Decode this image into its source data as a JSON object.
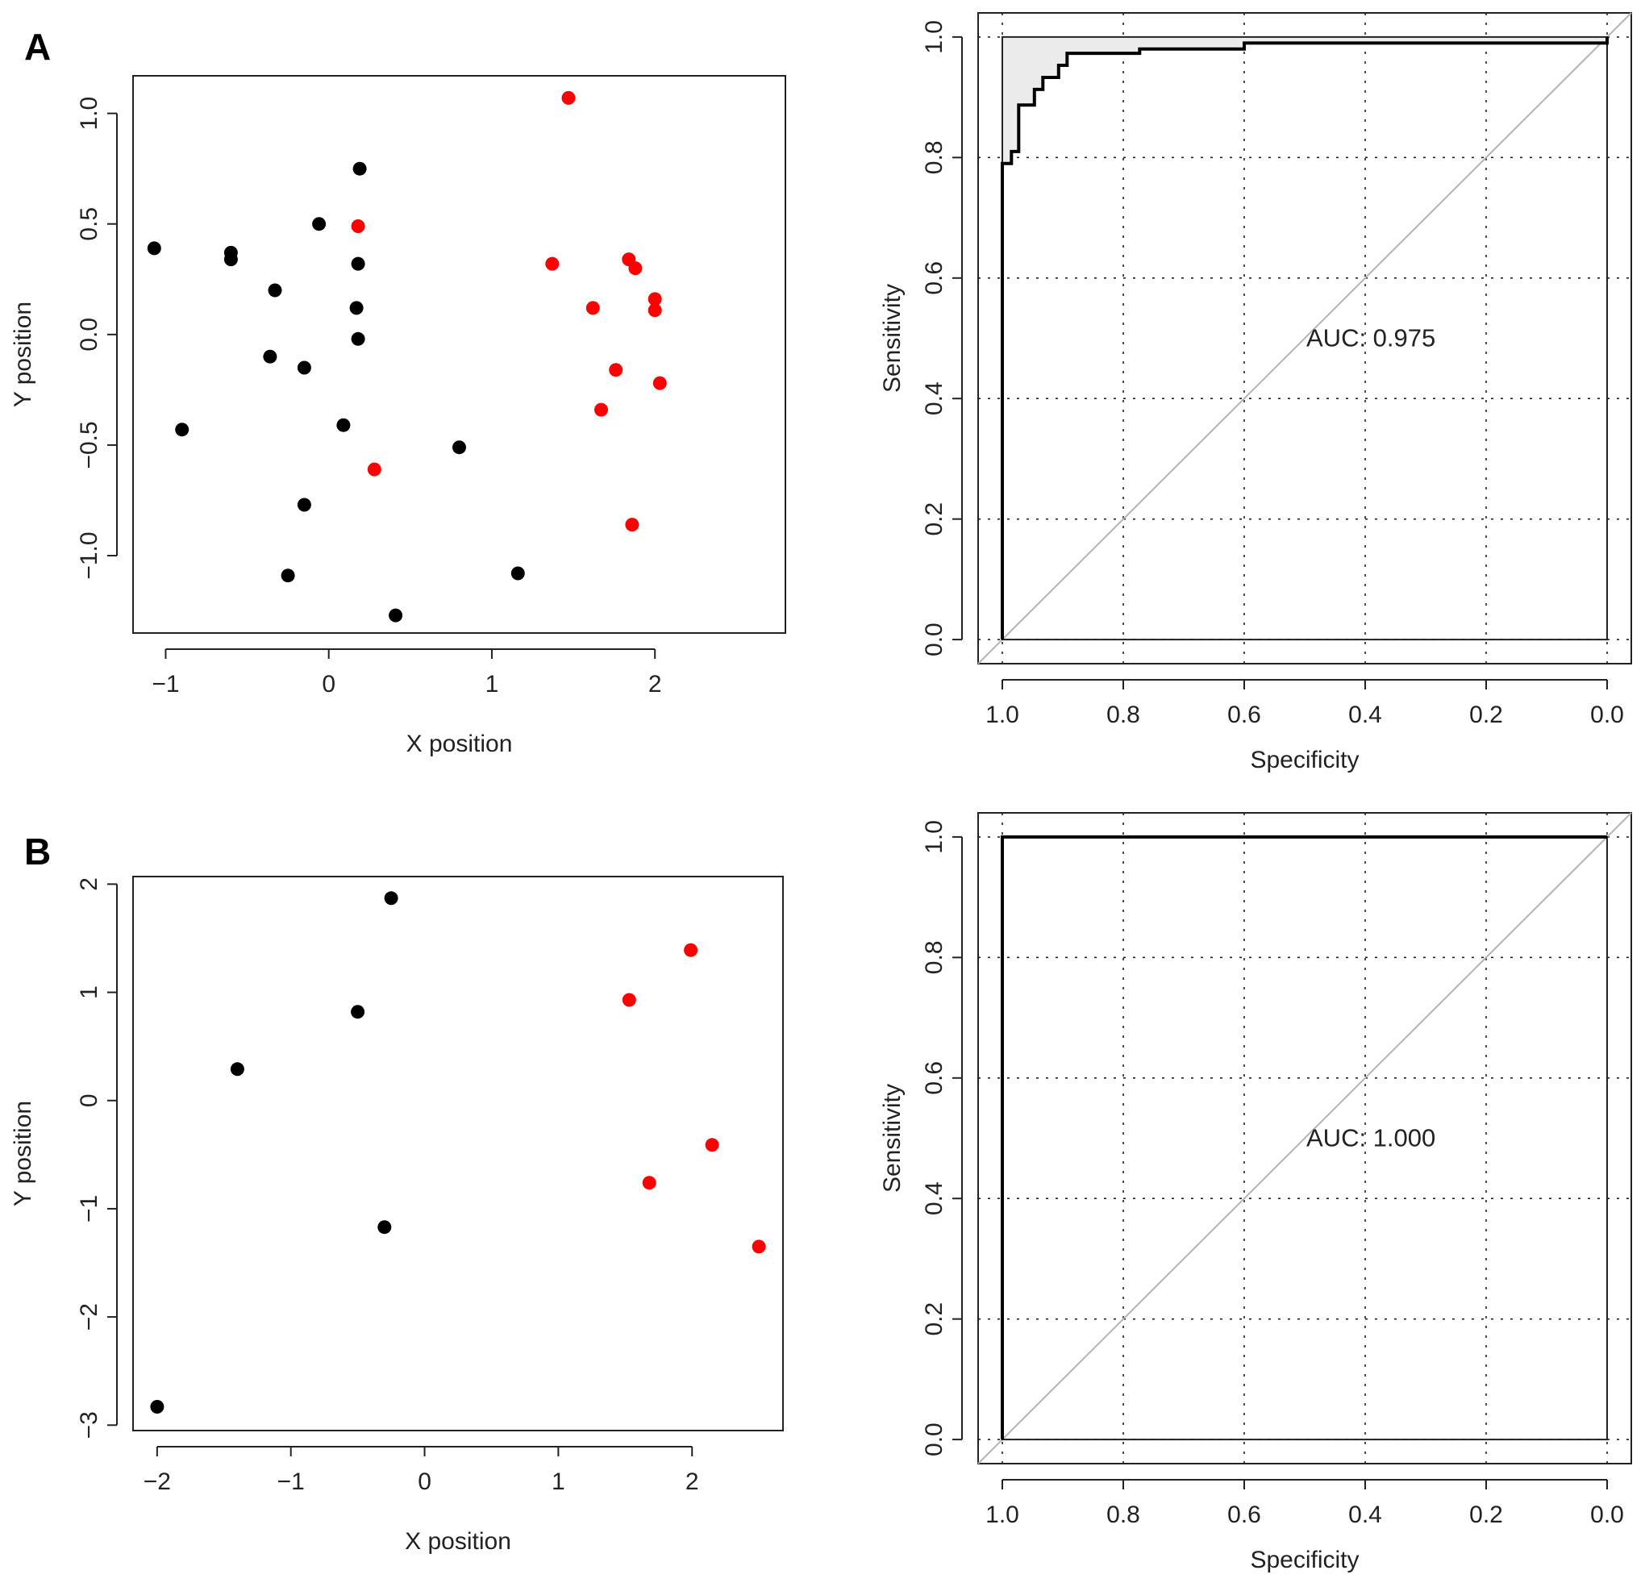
{
  "panels": {
    "A": {
      "letter": "A"
    },
    "B": {
      "letter": "B"
    }
  },
  "chart_data": [
    {
      "id": "A-scatter",
      "type": "scatter",
      "panel": "A",
      "title": "",
      "xlabel": "X position",
      "ylabel": "Y position",
      "xlim": [
        -1.2,
        2.8
      ],
      "ylim": [
        -1.35,
        1.17
      ],
      "xticks": [
        -1,
        0,
        1,
        2
      ],
      "yticks": [
        -1.0,
        -0.5,
        0.0,
        0.5,
        1.0
      ],
      "xtick_labels": [
        "−1",
        "0",
        "1",
        "2"
      ],
      "ytick_labels": [
        "−1.0",
        "−0.5",
        "0.0",
        "0.5",
        "1.0"
      ],
      "grid": false,
      "series": [
        {
          "color": "#000000",
          "points": [
            {
              "x": -1.07,
              "y": 0.39
            },
            {
              "x": -0.6,
              "y": 0.37
            },
            {
              "x": -0.6,
              "y": 0.34
            },
            {
              "x": -0.33,
              "y": 0.2
            },
            {
              "x": -0.36,
              "y": -0.1
            },
            {
              "x": -0.15,
              "y": -0.15
            },
            {
              "x": -0.9,
              "y": -0.43
            },
            {
              "x": -0.06,
              "y": 0.5
            },
            {
              "x": 0.19,
              "y": 0.75
            },
            {
              "x": 0.18,
              "y": 0.32
            },
            {
              "x": 0.17,
              "y": 0.12
            },
            {
              "x": 0.18,
              "y": -0.02
            },
            {
              "x": 0.09,
              "y": -0.41
            },
            {
              "x": -0.15,
              "y": -0.77
            },
            {
              "x": -0.25,
              "y": -1.09
            },
            {
              "x": 0.41,
              "y": -1.27
            },
            {
              "x": 0.8,
              "y": -0.51
            },
            {
              "x": 1.16,
              "y": -1.08
            }
          ]
        },
        {
          "color": "#ff0000",
          "points": [
            {
              "x": 1.47,
              "y": 1.07
            },
            {
              "x": 0.18,
              "y": 0.49
            },
            {
              "x": 1.37,
              "y": 0.32
            },
            {
              "x": 1.84,
              "y": 0.34
            },
            {
              "x": 1.88,
              "y": 0.3
            },
            {
              "x": 1.62,
              "y": 0.12
            },
            {
              "x": 2.0,
              "y": 0.16
            },
            {
              "x": 2.0,
              "y": 0.11
            },
            {
              "x": 1.76,
              "y": -0.16
            },
            {
              "x": 2.03,
              "y": -0.22
            },
            {
              "x": 1.67,
              "y": -0.34
            },
            {
              "x": 0.28,
              "y": -0.61
            },
            {
              "x": 1.86,
              "y": -0.86
            }
          ]
        }
      ]
    },
    {
      "id": "A-roc",
      "type": "line",
      "panel": "A",
      "title": "",
      "xlabel": "Specificity",
      "ylabel": "Sensitivity",
      "xlim": [
        1.04,
        -0.04
      ],
      "ylim": [
        -0.04,
        1.04
      ],
      "x_reversed": true,
      "xticks": [
        1.0,
        0.8,
        0.6,
        0.4,
        0.2,
        0.0
      ],
      "yticks": [
        0.0,
        0.2,
        0.4,
        0.6,
        0.8,
        1.0
      ],
      "xtick_labels": [
        "1.0",
        "0.8",
        "0.6",
        "0.4",
        "0.2",
        "0.0"
      ],
      "ytick_labels": [
        "0.0",
        "0.2",
        "0.4",
        "0.6",
        "0.8",
        "1.0"
      ],
      "grid": true,
      "auc_label": "AUC: 0.975",
      "auc_polygon_filled": true,
      "diagonal": true,
      "curve": [
        {
          "x": 1.0,
          "y": 0.0
        },
        {
          "x": 1.0,
          "y": 0.79
        },
        {
          "x": 0.985,
          "y": 0.79
        },
        {
          "x": 0.985,
          "y": 0.81
        },
        {
          "x": 0.973,
          "y": 0.81
        },
        {
          "x": 0.973,
          "y": 0.887
        },
        {
          "x": 0.947,
          "y": 0.887
        },
        {
          "x": 0.947,
          "y": 0.913
        },
        {
          "x": 0.933,
          "y": 0.913
        },
        {
          "x": 0.933,
          "y": 0.933
        },
        {
          "x": 0.907,
          "y": 0.933
        },
        {
          "x": 0.907,
          "y": 0.953
        },
        {
          "x": 0.893,
          "y": 0.953
        },
        {
          "x": 0.893,
          "y": 0.973
        },
        {
          "x": 0.773,
          "y": 0.973
        },
        {
          "x": 0.773,
          "y": 0.98
        },
        {
          "x": 0.6,
          "y": 0.98
        },
        {
          "x": 0.6,
          "y": 0.99
        },
        {
          "x": 0.0,
          "y": 0.99
        },
        {
          "x": 0.0,
          "y": 1.0
        }
      ]
    },
    {
      "id": "B-scatter",
      "type": "scatter",
      "panel": "B",
      "title": "",
      "xlabel": "X position",
      "ylabel": "Y position",
      "xlim": [
        -2.18,
        2.68
      ],
      "ylim": [
        -3.05,
        2.07
      ],
      "xticks": [
        -2,
        -1,
        0,
        1,
        2
      ],
      "yticks": [
        -3,
        -2,
        -1,
        0,
        1,
        2
      ],
      "xtick_labels": [
        "−2",
        "−1",
        "0",
        "1",
        "2"
      ],
      "ytick_labels": [
        "−3",
        "−2",
        "−1",
        "0",
        "1",
        "2"
      ],
      "grid": false,
      "series": [
        {
          "color": "#000000",
          "points": [
            {
              "x": -0.25,
              "y": 1.87
            },
            {
              "x": -0.5,
              "y": 0.82
            },
            {
              "x": -1.4,
              "y": 0.29
            },
            {
              "x": -0.3,
              "y": -1.17
            },
            {
              "x": -2.0,
              "y": -2.83
            }
          ]
        },
        {
          "color": "#ff0000",
          "points": [
            {
              "x": 1.99,
              "y": 1.39
            },
            {
              "x": 1.53,
              "y": 0.93
            },
            {
              "x": 2.15,
              "y": -0.41
            },
            {
              "x": 1.68,
              "y": -0.76
            },
            {
              "x": 2.5,
              "y": -1.35
            }
          ]
        }
      ]
    },
    {
      "id": "B-roc",
      "type": "line",
      "panel": "B",
      "title": "",
      "xlabel": "Specificity",
      "ylabel": "Sensitivity",
      "xlim": [
        1.04,
        -0.04
      ],
      "ylim": [
        -0.04,
        1.04
      ],
      "x_reversed": true,
      "xticks": [
        1.0,
        0.8,
        0.6,
        0.4,
        0.2,
        0.0
      ],
      "yticks": [
        0.0,
        0.2,
        0.4,
        0.6,
        0.8,
        1.0
      ],
      "xtick_labels": [
        "1.0",
        "0.8",
        "0.6",
        "0.4",
        "0.2",
        "0.0"
      ],
      "ytick_labels": [
        "0.0",
        "0.2",
        "0.4",
        "0.6",
        "0.8",
        "1.0"
      ],
      "grid": true,
      "auc_label": "AUC: 1.000",
      "auc_polygon_filled": false,
      "diagonal": true,
      "curve": [
        {
          "x": 1.0,
          "y": 0.0
        },
        {
          "x": 1.0,
          "y": 1.0
        },
        {
          "x": 0.0,
          "y": 1.0
        }
      ]
    }
  ]
}
